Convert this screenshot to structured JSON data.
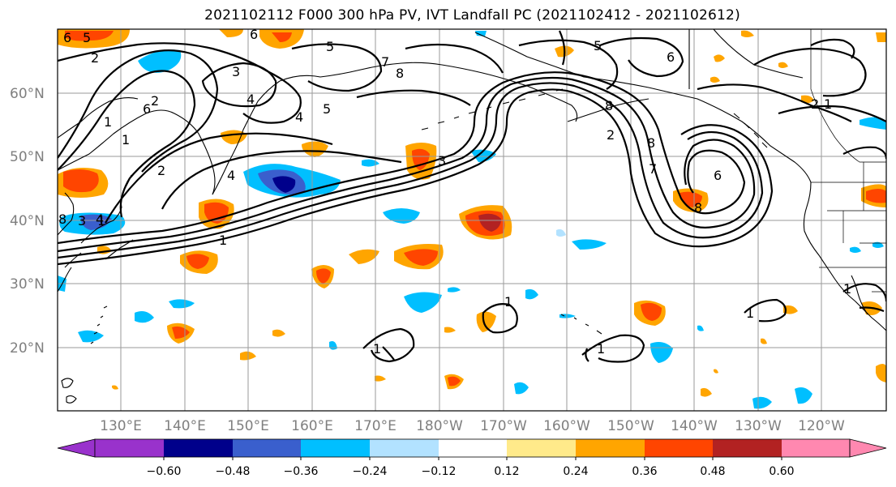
{
  "title": "2021102112 F000 300 hPa PV, IVT Landfall PC (2021102412 - 2021102612)",
  "lat_labels": [
    "60°N",
    "50°N",
    "40°N",
    "30°N",
    "20°N"
  ],
  "lon_labels": [
    "130°E",
    "140°E",
    "150°E",
    "160°E",
    "170°E",
    "180°W",
    "170°W",
    "160°W",
    "150°W",
    "140°W",
    "130°W",
    "120°W"
  ],
  "colorbar": {
    "colors": [
      "#9932cc",
      "#00008b",
      "#3a5fcd",
      "#00bfff",
      "#b2e2ff",
      "#ffffff",
      "#ffea8a",
      "#ffa500",
      "#ff4500",
      "#b22222",
      "#ff88b0"
    ],
    "ticks": [
      "−0.60",
      "−0.48",
      "−0.36",
      "−0.24",
      "−0.12",
      "0.12",
      "0.24",
      "0.36",
      "0.48",
      "0.60"
    ]
  },
  "contour_labels": [
    "6",
    "5",
    "2",
    "3",
    "7",
    "8",
    "5",
    "4",
    "6",
    "4",
    "3",
    "6",
    "1",
    "1",
    "2",
    "5",
    "2",
    "1",
    "4",
    "1",
    "8",
    "4",
    "3",
    "1",
    "1",
    "1",
    "1",
    "1",
    "8",
    "8",
    "8",
    "2",
    "2",
    "6",
    "7",
    "5",
    "6",
    "1"
  ]
}
